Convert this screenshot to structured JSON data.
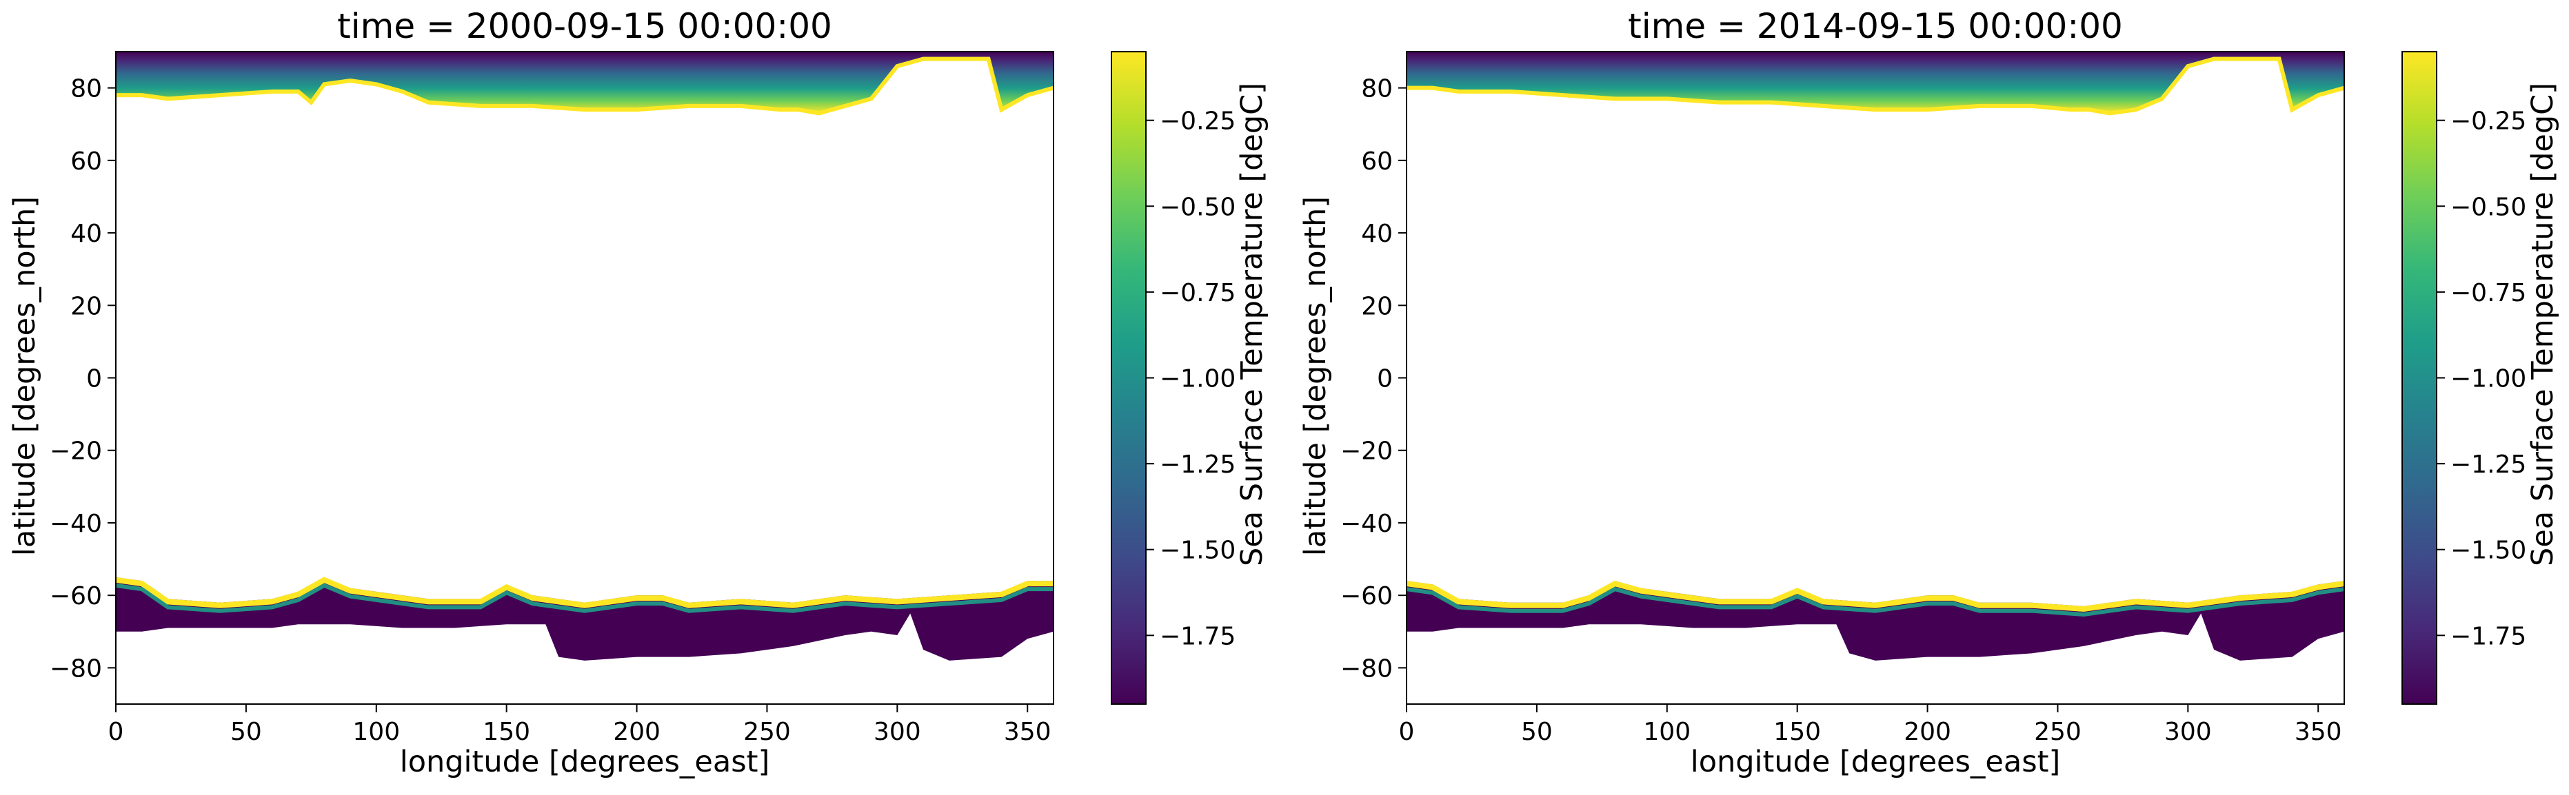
{
  "colors": {
    "viridis": [
      "#440154",
      "#482878",
      "#3e4a89",
      "#31688e",
      "#26828e",
      "#1f9e89",
      "#35b779",
      "#6ece58",
      "#b5de2b",
      "#fde725"
    ]
  },
  "chart_data": [
    {
      "type": "heatmap",
      "title": "time = 2000-09-15 00:00:00",
      "xlabel": "longitude [degrees_east]",
      "ylabel": "latitude [degrees_north]",
      "xlim": [
        0,
        360
      ],
      "ylim": [
        -90,
        90
      ],
      "xticks": [
        0,
        50,
        100,
        150,
        200,
        250,
        300,
        350
      ],
      "yticks": [
        80,
        60,
        40,
        20,
        0,
        -20,
        -40,
        -60,
        -80
      ],
      "colorbar": {
        "label": "Sea Surface Temperature [degC]",
        "range": [
          -1.95,
          -0.05
        ],
        "ticks": [
          -0.25,
          -0.5,
          -0.75,
          -1.0,
          -1.25,
          -1.5,
          -1.75
        ],
        "tick_labels": [
          "−0.25",
          "−0.50",
          "−0.75",
          "−1.00",
          "−1.25",
          "−1.50",
          "−1.75"
        ]
      },
      "north_ice_edge": {
        "lon": [
          0,
          10,
          20,
          40,
          60,
          70,
          75,
          80,
          90,
          100,
          110,
          120,
          140,
          160,
          180,
          200,
          220,
          240,
          255,
          262,
          270,
          280,
          290,
          300,
          310,
          325,
          335,
          340,
          345,
          350,
          355,
          360
        ],
        "lat": [
          78,
          78,
          77,
          78,
          79,
          79,
          76,
          81,
          82,
          81,
          79,
          76,
          75,
          75,
          74,
          74,
          75,
          75,
          74,
          74,
          73,
          75,
          77,
          86,
          88,
          88,
          88,
          74,
          76,
          78,
          79,
          80
        ]
      },
      "south_ice_edge": {
        "lon": [
          0,
          10,
          20,
          40,
          60,
          70,
          80,
          90,
          100,
          120,
          140,
          150,
          160,
          180,
          200,
          210,
          220,
          240,
          260,
          280,
          300,
          320,
          340,
          350,
          360
        ],
        "lat": [
          -55,
          -56,
          -61,
          -62,
          -61,
          -59,
          -55,
          -58,
          -59,
          -61,
          -61,
          -57,
          -60,
          -62,
          -60,
          -60,
          -62,
          -61,
          -62,
          -60,
          -61,
          -60,
          -59,
          -56,
          -56
        ]
      },
      "south_continent": {
        "lon": [
          0,
          10,
          20,
          40,
          60,
          70,
          90,
          110,
          130,
          150,
          165,
          170,
          180,
          200,
          220,
          240,
          260,
          280,
          290,
          300,
          305,
          310,
          320,
          340,
          350,
          360
        ],
        "lat": [
          -70,
          -70,
          -69,
          -69,
          -69,
          -68,
          -68,
          -69,
          -69,
          -68,
          -68,
          -77,
          -78,
          -77,
          -77,
          -76,
          -74,
          -71,
          -70,
          -71,
          -65,
          -75,
          -78,
          -77,
          -72,
          -70
        ]
      }
    },
    {
      "type": "heatmap",
      "title": "time = 2014-09-15 00:00:00",
      "xlabel": "longitude [degrees_east]",
      "ylabel": "latitude [degrees_north]",
      "xlim": [
        0,
        360
      ],
      "ylim": [
        -90,
        90
      ],
      "xticks": [
        0,
        50,
        100,
        150,
        200,
        250,
        300,
        350
      ],
      "yticks": [
        80,
        60,
        40,
        20,
        0,
        -20,
        -40,
        -60,
        -80
      ],
      "colorbar": {
        "label": "Sea Surface Temperature [degC]",
        "range": [
          -1.95,
          -0.05
        ],
        "ticks": [
          -0.25,
          -0.5,
          -0.75,
          -1.0,
          -1.25,
          -1.5,
          -1.75
        ],
        "tick_labels": [
          "−0.25",
          "−0.50",
          "−0.75",
          "−1.00",
          "−1.25",
          "−1.50",
          "−1.75"
        ]
      },
      "north_ice_edge": {
        "lon": [
          0,
          10,
          20,
          40,
          60,
          80,
          100,
          120,
          140,
          160,
          180,
          200,
          220,
          240,
          255,
          262,
          270,
          280,
          290,
          300,
          310,
          325,
          335,
          340,
          345,
          350,
          355,
          360
        ],
        "lat": [
          80,
          80,
          79,
          79,
          78,
          77,
          77,
          76,
          76,
          75,
          74,
          74,
          75,
          75,
          74,
          74,
          73,
          74,
          77,
          86,
          88,
          88,
          88,
          74,
          76,
          78,
          79,
          80
        ]
      },
      "south_ice_edge": {
        "lon": [
          0,
          10,
          20,
          40,
          60,
          70,
          80,
          90,
          100,
          120,
          140,
          150,
          160,
          180,
          200,
          210,
          220,
          240,
          260,
          280,
          300,
          320,
          340,
          350,
          360
        ],
        "lat": [
          -56,
          -57,
          -61,
          -62,
          -62,
          -60,
          -56,
          -58,
          -59,
          -61,
          -61,
          -58,
          -61,
          -62,
          -60,
          -60,
          -62,
          -62,
          -63,
          -61,
          -62,
          -60,
          -59,
          -57,
          -56
        ]
      },
      "south_continent": {
        "lon": [
          0,
          10,
          20,
          40,
          60,
          70,
          90,
          110,
          130,
          150,
          165,
          170,
          180,
          200,
          220,
          240,
          260,
          280,
          290,
          300,
          305,
          310,
          320,
          340,
          350,
          360
        ],
        "lat": [
          -70,
          -70,
          -69,
          -69,
          -69,
          -68,
          -68,
          -69,
          -69,
          -68,
          -68,
          -76,
          -78,
          -77,
          -77,
          -76,
          -74,
          -71,
          -70,
          -71,
          -65,
          -75,
          -78,
          -77,
          -72,
          -70
        ]
      }
    }
  ]
}
